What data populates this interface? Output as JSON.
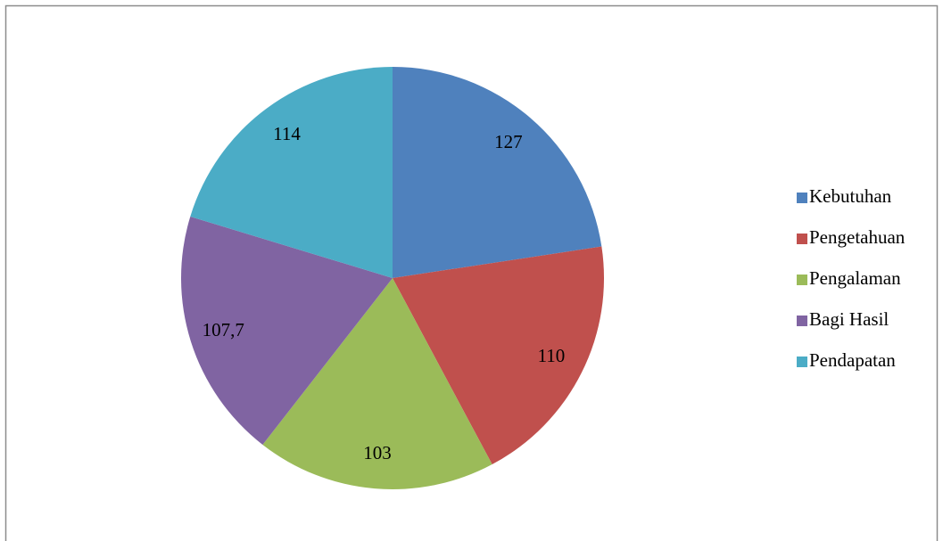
{
  "chart_data": {
    "type": "pie",
    "categories": [
      "Kebutuhan",
      "Pengetahuan",
      "Pengalaman",
      "Bagi Hasil",
      "Pendapatan"
    ],
    "values": [
      127,
      110,
      103,
      107.7,
      114
    ],
    "value_labels": [
      "127",
      "110",
      "103",
      "107,7",
      "114"
    ],
    "colors": [
      "#4f81bd",
      "#c0504d",
      "#9bbb59",
      "#8064a2",
      "#4bacc6"
    ],
    "legend": "right"
  }
}
